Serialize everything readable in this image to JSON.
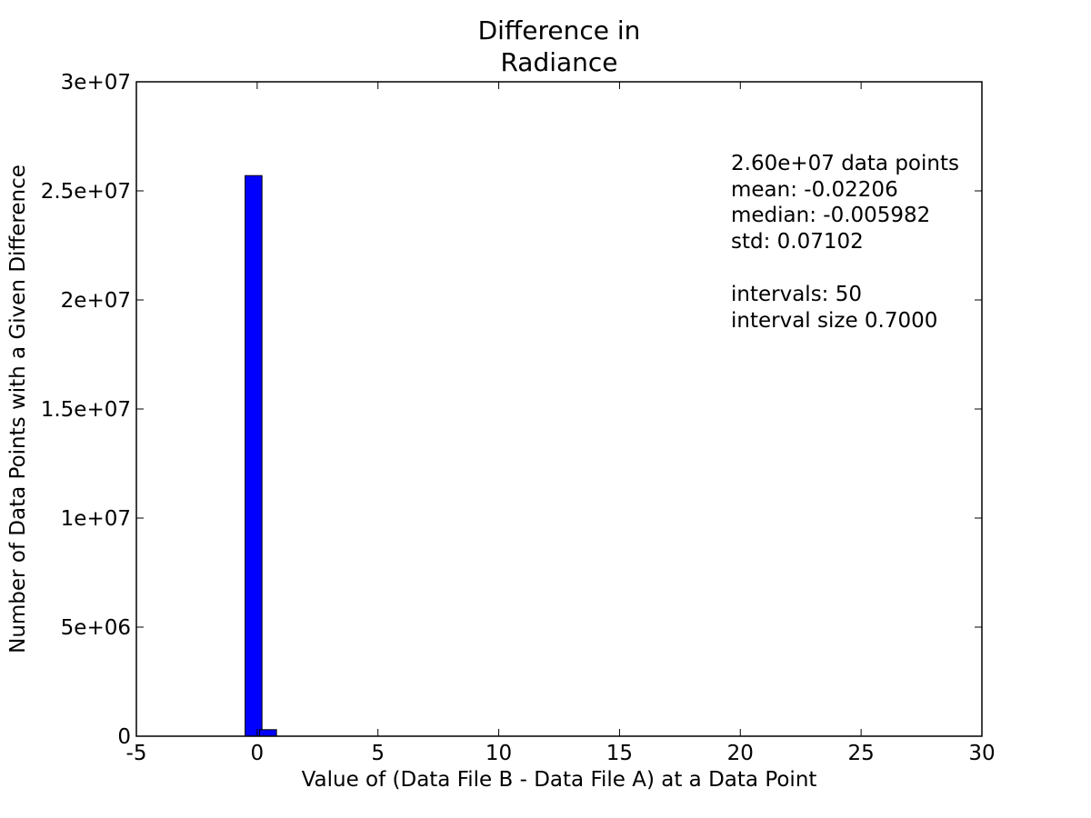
{
  "chart_data": {
    "type": "bar",
    "title_lines": [
      "Difference in",
      "Radiance"
    ],
    "xlabel": "Value of (Data File B - Data File A) at a Data Point",
    "ylabel": "Number of Data Points with a Given Difference",
    "xlim": [
      -5,
      30
    ],
    "ylim": [
      0,
      30000000
    ],
    "x_ticks": [
      -5,
      0,
      5,
      10,
      15,
      20,
      25,
      30
    ],
    "x_tick_labels": [
      "-5",
      "0",
      "5",
      "10",
      "15",
      "20",
      "25",
      "30"
    ],
    "y_ticks": [
      0,
      5000000,
      10000000,
      15000000,
      20000000,
      25000000,
      30000000
    ],
    "y_tick_labels": [
      "0",
      "5e+06",
      "1e+07",
      "1.5e+07",
      "2e+07",
      "2.5e+07",
      "3e+07"
    ],
    "bin_width": 0.7,
    "bins": [
      {
        "x_start": -0.5,
        "count": 25700000
      },
      {
        "x_start": 0.1,
        "count": 300000
      }
    ],
    "bar_color": "#0000ff",
    "edge_color": "#000000",
    "grid": false,
    "stats": {
      "line1": "2.60e+07 data points",
      "line2": "mean: -0.02206",
      "line3": "median: -0.005982",
      "line4": "std: 0.07102",
      "line5": "intervals: 50",
      "line6": "interval size 0.7000"
    }
  }
}
